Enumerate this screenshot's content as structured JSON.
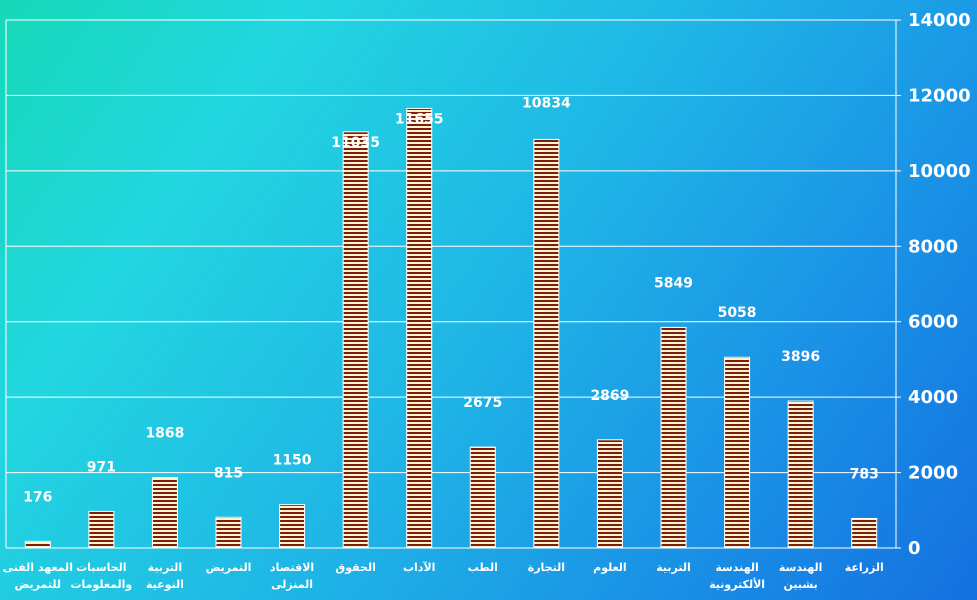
{
  "chart_data": {
    "type": "bar",
    "title": "",
    "xlabel": "",
    "ylabel": "",
    "categories": [
      [
        "المعهد الفنى",
        "للتمريض"
      ],
      [
        "الحاسبات",
        "والمعلومات"
      ],
      [
        "التربية",
        "النوعية"
      ],
      [
        "التمريض"
      ],
      [
        "الاقتصاد",
        "المنزلى"
      ],
      [
        "الحقوق"
      ],
      [
        "الآداب"
      ],
      [
        "الطب"
      ],
      [
        "التجارة"
      ],
      [
        "العلوم"
      ],
      [
        "التربية"
      ],
      [
        "الهندسة",
        "الألكترونية"
      ],
      [
        "الهندسة",
        "بشبين"
      ],
      [
        "الزراعة"
      ]
    ],
    "values": [
      176,
      971,
      1868,
      815,
      1150,
      11035,
      11655,
      2675,
      10834,
      2869,
      5849,
      5058,
      3896,
      783
    ],
    "data_labels": [
      "176",
      "971",
      "1868",
      "815",
      "1150",
      "11035",
      "11655",
      "2675",
      "10834",
      "2869",
      "5849",
      "5058",
      "3896",
      "783"
    ],
    "ylim": [
      0,
      14000
    ],
    "yticks": [
      0,
      2000,
      4000,
      6000,
      8000,
      10000,
      12000,
      14000
    ],
    "ytick_labels": [
      "0",
      "2000",
      "4000",
      "6000",
      "8000",
      "10000",
      "12000",
      "14000"
    ],
    "y_axis_side": "right",
    "grid": true,
    "legend": false,
    "colors": {
      "bar_stripe_dark": "#7a1f10",
      "bar_stripe_light": "#fff4cc",
      "bar_outline": "#ffffff",
      "gridline": "#ffffff",
      "text": "#ffffff"
    }
  }
}
